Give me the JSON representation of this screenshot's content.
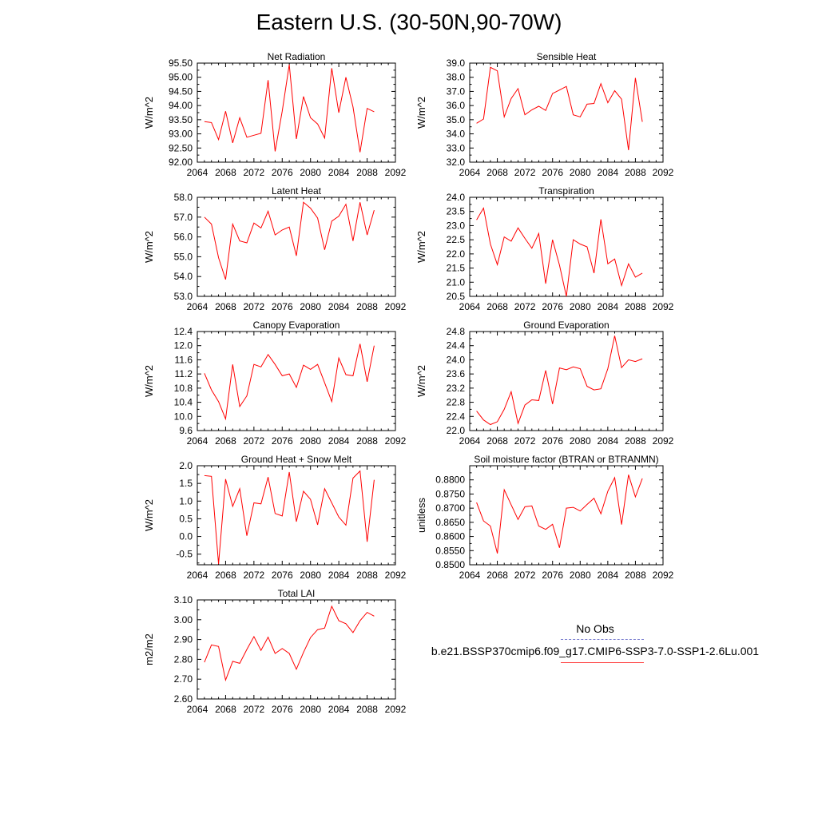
{
  "page": {
    "title": "Eastern U.S. (30-50N,90-70W)"
  },
  "legend": {
    "obs_label": "No Obs",
    "case_label": "b.e21.BSSP370cmip6.f09_g17.CMIP6-SSP3-7.0-SSP1-2.6Lu.001",
    "obs_color": "#7b7fd0",
    "case_color": "#ff0000"
  },
  "chart_data": [
    {
      "type": "line",
      "title": "Net Radiation",
      "xlabel": "",
      "ylabel": "W/m^2",
      "xlim": [
        2064,
        2092
      ],
      "ylim": [
        92.0,
        95.5
      ],
      "xticks": [
        "2064",
        "2068",
        "2072",
        "2076",
        "2080",
        "2084",
        "2088",
        "2092"
      ],
      "yticks": [
        "92.00",
        "92.50",
        "93.00",
        "93.50",
        "94.00",
        "94.50",
        "95.00",
        "95.50"
      ],
      "x": [
        2065,
        2066,
        2067,
        2068,
        2069,
        2070,
        2071,
        2072,
        2073,
        2074,
        2075,
        2076,
        2077,
        2078,
        2079,
        2080,
        2081,
        2082,
        2083,
        2084,
        2085,
        2086,
        2087,
        2088,
        2089
      ],
      "series": [
        {
          "values": [
            93.43,
            93.4,
            92.8,
            93.8,
            92.68,
            93.57,
            92.88,
            92.95,
            93.02,
            94.9,
            92.38,
            93.8,
            95.45,
            92.82,
            94.32,
            93.57,
            93.35,
            92.85,
            95.32,
            93.75,
            95.0,
            93.95,
            92.35,
            93.9,
            93.78
          ],
          "color": "#ff0000"
        }
      ],
      "grid": false
    },
    {
      "type": "line",
      "title": "Sensible Heat",
      "xlabel": "",
      "ylabel": "W/m^2",
      "xlim": [
        2064,
        2092
      ],
      "ylim": [
        32.0,
        39.0
      ],
      "xticks": [
        "2064",
        "2068",
        "2072",
        "2076",
        "2080",
        "2084",
        "2088",
        "2092"
      ],
      "yticks": [
        "32.0",
        "33.0",
        "34.0",
        "35.0",
        "36.0",
        "37.0",
        "38.0",
        "39.0"
      ],
      "x": [
        2065,
        2066,
        2067,
        2068,
        2069,
        2070,
        2071,
        2072,
        2073,
        2074,
        2075,
        2076,
        2077,
        2078,
        2079,
        2080,
        2081,
        2082,
        2083,
        2084,
        2085,
        2086,
        2087,
        2088,
        2089
      ],
      "series": [
        {
          "values": [
            34.75,
            35.05,
            38.7,
            38.45,
            35.2,
            36.5,
            37.2,
            35.35,
            35.7,
            35.95,
            35.65,
            36.85,
            37.1,
            37.35,
            35.35,
            35.2,
            36.1,
            36.15,
            37.55,
            36.2,
            37.05,
            36.45,
            32.85,
            37.95,
            34.85
          ],
          "color": "#ff0000"
        }
      ],
      "grid": false
    },
    {
      "type": "line",
      "title": "Latent Heat",
      "xlabel": "",
      "ylabel": "W/m^2",
      "xlim": [
        2064,
        2092
      ],
      "ylim": [
        53.0,
        58.0
      ],
      "xticks": [
        "2064",
        "2068",
        "2072",
        "2076",
        "2080",
        "2084",
        "2088",
        "2092"
      ],
      "yticks": [
        "53.0",
        "54.0",
        "55.0",
        "56.0",
        "57.0",
        "58.0"
      ],
      "x": [
        2065,
        2066,
        2067,
        2068,
        2069,
        2070,
        2071,
        2072,
        2073,
        2074,
        2075,
        2076,
        2077,
        2078,
        2079,
        2080,
        2081,
        2082,
        2083,
        2084,
        2085,
        2086,
        2087,
        2088,
        2089
      ],
      "series": [
        {
          "values": [
            57.0,
            56.65,
            54.95,
            53.85,
            56.65,
            55.8,
            55.7,
            56.7,
            56.45,
            57.3,
            56.1,
            56.35,
            56.5,
            55.05,
            57.75,
            57.45,
            56.95,
            55.35,
            56.8,
            57.05,
            57.65,
            55.8,
            57.75,
            56.1,
            57.35
          ],
          "color": "#ff0000"
        }
      ],
      "grid": false
    },
    {
      "type": "line",
      "title": "Transpiration",
      "xlabel": "",
      "ylabel": "W/m^2",
      "xlim": [
        2064,
        2092
      ],
      "ylim": [
        20.5,
        24.0
      ],
      "xticks": [
        "2064",
        "2068",
        "2072",
        "2076",
        "2080",
        "2084",
        "2088",
        "2092"
      ],
      "yticks": [
        "20.5",
        "21.0",
        "21.5",
        "22.0",
        "22.5",
        "23.0",
        "23.5",
        "24.0"
      ],
      "x": [
        2065,
        2066,
        2067,
        2068,
        2069,
        2070,
        2071,
        2072,
        2073,
        2074,
        2075,
        2076,
        2077,
        2078,
        2079,
        2080,
        2081,
        2082,
        2083,
        2084,
        2085,
        2086,
        2087,
        2088,
        2089
      ],
      "series": [
        {
          "values": [
            23.2,
            23.62,
            22.35,
            21.62,
            22.6,
            22.45,
            22.92,
            22.55,
            22.2,
            22.72,
            20.95,
            22.5,
            21.6,
            20.5,
            22.5,
            22.35,
            22.25,
            21.32,
            23.22,
            21.65,
            21.82,
            20.88,
            21.65,
            21.18,
            21.32
          ],
          "color": "#ff0000"
        }
      ],
      "grid": false
    },
    {
      "type": "line",
      "title": "Canopy Evaporation",
      "xlabel": "",
      "ylabel": "W/m^2",
      "xlim": [
        2064,
        2092
      ],
      "ylim": [
        9.6,
        12.4
      ],
      "xticks": [
        "2064",
        "2068",
        "2072",
        "2076",
        "2080",
        "2084",
        "2088",
        "2092"
      ],
      "yticks": [
        "9.6",
        "10.0",
        "10.4",
        "10.8",
        "11.2",
        "11.6",
        "12.0",
        "12.4"
      ],
      "x": [
        2065,
        2066,
        2067,
        2068,
        2069,
        2070,
        2071,
        2072,
        2073,
        2074,
        2075,
        2076,
        2077,
        2078,
        2079,
        2080,
        2081,
        2082,
        2083,
        2084,
        2085,
        2086,
        2087,
        2088,
        2089
      ],
      "series": [
        {
          "values": [
            11.22,
            10.75,
            10.42,
            9.93,
            11.47,
            10.28,
            10.58,
            11.47,
            11.4,
            11.75,
            11.47,
            11.15,
            11.2,
            10.82,
            11.45,
            11.33,
            11.47,
            10.95,
            10.42,
            11.65,
            11.18,
            11.15,
            12.05,
            10.98,
            12.0
          ],
          "color": "#ff0000"
        }
      ],
      "grid": false
    },
    {
      "type": "line",
      "title": "Ground Evaporation",
      "xlabel": "",
      "ylabel": "W/m^2",
      "xlim": [
        2064,
        2092
      ],
      "ylim": [
        22.0,
        24.8
      ],
      "xticks": [
        "2064",
        "2068",
        "2072",
        "2076",
        "2080",
        "2084",
        "2088",
        "2092"
      ],
      "yticks": [
        "22.0",
        "22.4",
        "22.8",
        "23.2",
        "23.6",
        "24.0",
        "24.4",
        "24.8"
      ],
      "x": [
        2065,
        2066,
        2067,
        2068,
        2069,
        2070,
        2071,
        2072,
        2073,
        2074,
        2075,
        2076,
        2077,
        2078,
        2079,
        2080,
        2081,
        2082,
        2083,
        2084,
        2085,
        2086,
        2087,
        2088,
        2089
      ],
      "series": [
        {
          "values": [
            22.55,
            22.3,
            22.17,
            22.25,
            22.6,
            23.1,
            22.2,
            22.72,
            22.87,
            22.85,
            23.7,
            22.75,
            23.77,
            23.72,
            23.8,
            23.75,
            23.25,
            23.15,
            23.18,
            23.75,
            24.68,
            23.78,
            24.0,
            23.95,
            24.03
          ],
          "color": "#ff0000"
        }
      ],
      "grid": false
    },
    {
      "type": "line",
      "title": "Ground Heat + Snow Melt",
      "xlabel": "",
      "ylabel": "W/m^2",
      "xlim": [
        2064,
        2092
      ],
      "ylim": [
        -0.8,
        2.0
      ],
      "xticks": [
        "2064",
        "2068",
        "2072",
        "2076",
        "2080",
        "2084",
        "2088",
        "2092"
      ],
      "yticks": [
        "-0.5",
        "0.0",
        "0.5",
        "1.0",
        "1.5",
        "2.0"
      ],
      "x": [
        2065,
        2066,
        2067,
        2068,
        2069,
        2070,
        2071,
        2072,
        2073,
        2074,
        2075,
        2076,
        2077,
        2078,
        2079,
        2080,
        2081,
        2082,
        2083,
        2084,
        2085,
        2086,
        2087,
        2088,
        2089
      ],
      "series": [
        {
          "values": [
            1.72,
            1.7,
            -0.78,
            1.62,
            0.85,
            1.35,
            0.02,
            0.95,
            0.92,
            1.68,
            0.65,
            0.58,
            1.82,
            0.42,
            1.28,
            1.05,
            0.33,
            1.35,
            0.95,
            0.55,
            0.32,
            1.65,
            1.85,
            -0.15,
            1.6
          ],
          "color": "#ff0000"
        }
      ],
      "grid": false
    },
    {
      "type": "line",
      "title": "Soil moisture factor (BTRAN or BTRANMN)",
      "xlabel": "",
      "ylabel": "unitless",
      "xlim": [
        2064,
        2092
      ],
      "ylim": [
        0.85,
        0.885
      ],
      "xticks": [
        "2064",
        "2068",
        "2072",
        "2076",
        "2080",
        "2084",
        "2088",
        "2092"
      ],
      "yticks": [
        "0.8500",
        "0.8550",
        "0.8600",
        "0.8650",
        "0.8700",
        "0.8750",
        "0.8800"
      ],
      "x": [
        2065,
        2066,
        2067,
        2068,
        2069,
        2070,
        2071,
        2072,
        2073,
        2074,
        2075,
        2076,
        2077,
        2078,
        2079,
        2080,
        2081,
        2082,
        2083,
        2084,
        2085,
        2086,
        2087,
        2088,
        2089
      ],
      "series": [
        {
          "values": [
            0.872,
            0.8655,
            0.8637,
            0.854,
            0.8765,
            0.8712,
            0.866,
            0.8705,
            0.8708,
            0.8637,
            0.8625,
            0.8643,
            0.856,
            0.87,
            0.8703,
            0.869,
            0.8713,
            0.8735,
            0.868,
            0.876,
            0.8808,
            0.8642,
            0.8818,
            0.874,
            0.8805
          ],
          "color": "#ff0000"
        }
      ],
      "grid": false
    },
    {
      "type": "line",
      "title": "Total LAI",
      "xlabel": "",
      "ylabel": "m2/m2",
      "xlim": [
        2064,
        2092
      ],
      "ylim": [
        2.6,
        3.1
      ],
      "xticks": [
        "2064",
        "2068",
        "2072",
        "2076",
        "2080",
        "2084",
        "2088",
        "2092"
      ],
      "yticks": [
        "2.60",
        "2.70",
        "2.80",
        "2.90",
        "3.00",
        "3.10"
      ],
      "x": [
        2065,
        2066,
        2067,
        2068,
        2069,
        2070,
        2071,
        2072,
        2073,
        2074,
        2075,
        2076,
        2077,
        2078,
        2079,
        2080,
        2081,
        2082,
        2083,
        2084,
        2085,
        2086,
        2087,
        2088,
        2089
      ],
      "series": [
        {
          "values": [
            2.785,
            2.873,
            2.865,
            2.695,
            2.79,
            2.78,
            2.85,
            2.915,
            2.845,
            2.912,
            2.83,
            2.855,
            2.83,
            2.75,
            2.835,
            2.91,
            2.95,
            2.958,
            3.068,
            2.995,
            2.98,
            2.935,
            2.995,
            3.037,
            3.018
          ],
          "color": "#ff0000"
        }
      ],
      "grid": false
    }
  ]
}
